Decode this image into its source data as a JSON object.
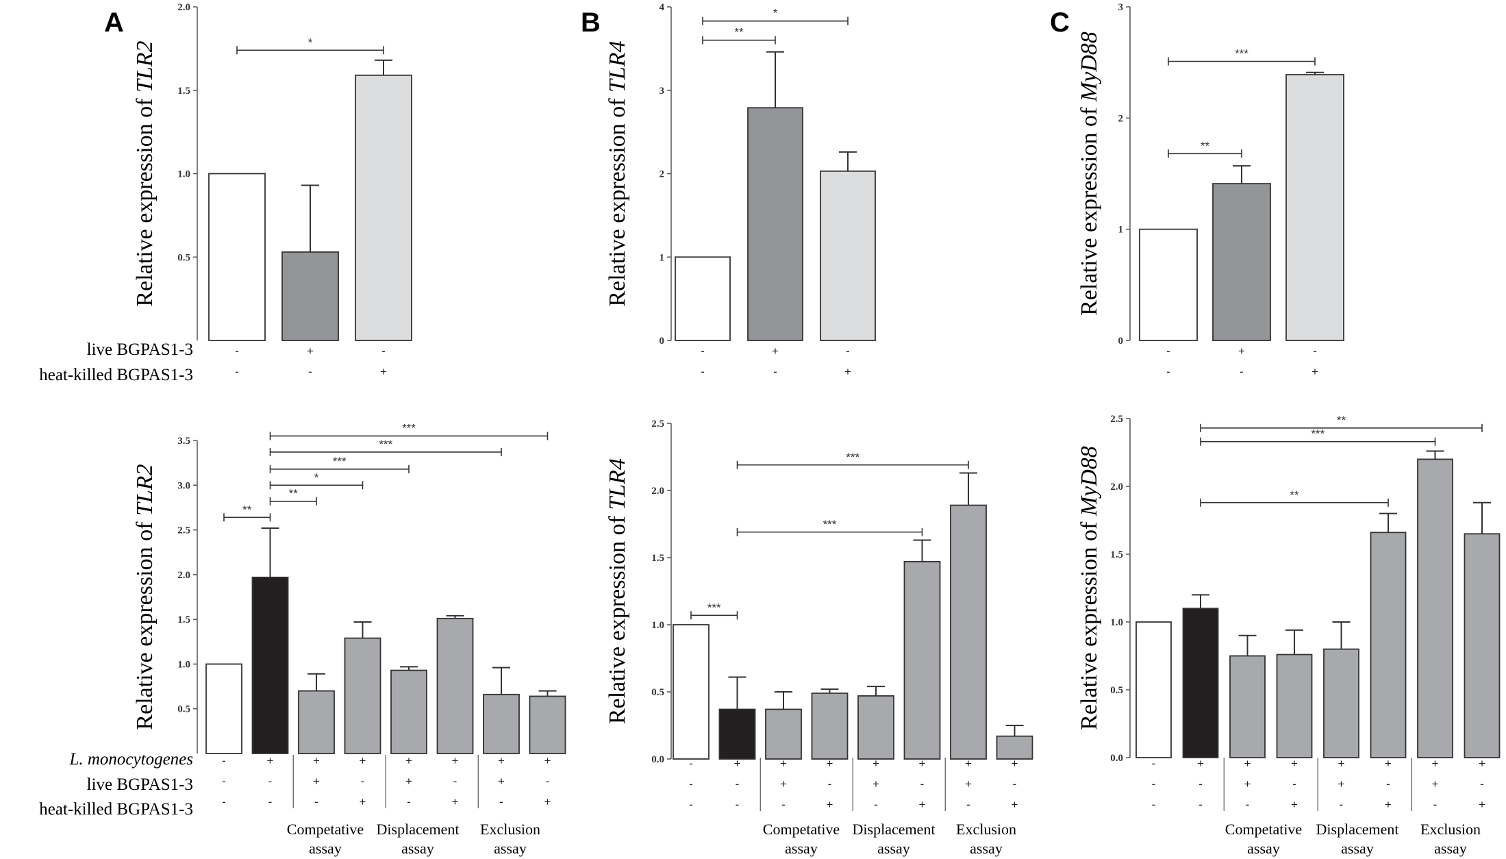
{
  "figure": {
    "row_labels_top": [
      "live BGPAS1-3",
      "heat-killed BGPAS1-3"
    ],
    "row_labels_bottom": [
      "L. monocytogenes",
      "live BGPAS1-3",
      "heat-killed BGPAS1-3"
    ],
    "assay_groups": [
      {
        "line1": "Competative",
        "line2": "assay"
      },
      {
        "line1": "Displacement",
        "line2": "assay"
      },
      {
        "line1": "Exclusion",
        "line2": "assay"
      }
    ]
  },
  "chart_data": [
    {
      "id": "A_top",
      "panel": "A",
      "type": "bar",
      "ylabel_prefix": "Relative expression of ",
      "ylabel_gene": "TLR2",
      "ylim": [
        0,
        2.0
      ],
      "ticks": [
        "0.5",
        "1.0",
        "1.5",
        "2.0"
      ],
      "values": [
        1.0,
        0.53,
        1.59
      ],
      "errors": [
        0,
        0.4,
        0.09
      ],
      "colors": [
        "#ffffff",
        "#939598",
        "#dcdddf"
      ],
      "signs": [
        [
          "-",
          "+",
          "-"
        ],
        [
          "-",
          "-",
          "+"
        ]
      ],
      "sig": [
        {
          "from": 1,
          "to": 3,
          "y": 1.74,
          "label": "*"
        }
      ]
    },
    {
      "id": "B_top",
      "panel": "B",
      "type": "bar",
      "ylabel_prefix": "Relative expression of ",
      "ylabel_gene": "TLR4",
      "ylim": [
        0,
        4
      ],
      "ticks": [
        "0",
        "1",
        "2",
        "3",
        "4"
      ],
      "values": [
        1.0,
        2.79,
        2.03
      ],
      "errors": [
        0,
        0.67,
        0.23
      ],
      "colors": [
        "#ffffff",
        "#939598",
        "#dcdddf"
      ],
      "signs": [
        [
          "-",
          "+",
          "-"
        ],
        [
          "-",
          "-",
          "+"
        ]
      ],
      "sig": [
        {
          "from": 1,
          "to": 2,
          "y": 3.6,
          "label": "**"
        },
        {
          "from": 1,
          "to": 3,
          "y": 3.83,
          "label": "*"
        }
      ]
    },
    {
      "id": "C_top",
      "panel": "C",
      "type": "bar",
      "ylabel_prefix": "Relative expression of ",
      "ylabel_gene": "MyD88",
      "ylim": [
        0,
        3
      ],
      "ticks": [
        "0",
        "1",
        "2",
        "3"
      ],
      "values": [
        1.0,
        1.41,
        2.39
      ],
      "errors": [
        0,
        0.16,
        0.02
      ],
      "colors": [
        "#ffffff",
        "#939598",
        "#dcdddf"
      ],
      "signs": [
        [
          "-",
          "+",
          "-"
        ],
        [
          "-",
          "-",
          "+"
        ]
      ],
      "sig": [
        {
          "from": 1,
          "to": 2,
          "y": 1.68,
          "label": "**"
        },
        {
          "from": 1,
          "to": 3,
          "y": 2.51,
          "label": "***"
        }
      ]
    },
    {
      "id": "A_bottom",
      "panel": "A",
      "type": "bar",
      "ylabel_prefix": "Relative expression of ",
      "ylabel_gene": "TLR2",
      "ylim": [
        0,
        3.5
      ],
      "ticks": [
        "0.5",
        "1.0",
        "1.5",
        "2.0",
        "2.5",
        "3.0",
        "3.5"
      ],
      "values": [
        1.0,
        1.97,
        0.7,
        1.29,
        0.93,
        1.51,
        0.66,
        0.64
      ],
      "errors": [
        0,
        0.55,
        0.19,
        0.18,
        0.04,
        0.03,
        0.3,
        0.06
      ],
      "colors": [
        "#ffffff",
        "#231f20",
        "#a7a9ac",
        "#a7a9ac",
        "#a7a9ac",
        "#a7a9ac",
        "#a7a9ac",
        "#a7a9ac"
      ],
      "signs": [
        [
          "-",
          "+",
          "+",
          "+",
          "+",
          "+",
          "+",
          "+"
        ],
        [
          "-",
          "-",
          "+",
          "-",
          "+",
          "-",
          "+",
          "-"
        ],
        [
          "-",
          "-",
          "-",
          "+",
          "-",
          "+",
          "-",
          "+"
        ]
      ],
      "sig": [
        {
          "from": 1,
          "to": 2,
          "y": 2.64,
          "label": "**"
        },
        {
          "from": 2,
          "to": 3,
          "y": 2.82,
          "label": "**"
        },
        {
          "from": 2,
          "to": 4,
          "y": 3.0,
          "label": "*"
        },
        {
          "from": 2,
          "to": 5,
          "y": 3.18,
          "label": "***"
        },
        {
          "from": 2,
          "to": 7,
          "y": 3.37,
          "label": "***"
        },
        {
          "from": 2,
          "to": 8,
          "y": 3.55,
          "label": "***"
        }
      ]
    },
    {
      "id": "B_bottom",
      "panel": "B",
      "type": "bar",
      "ylabel_prefix": "Relative expression of ",
      "ylabel_gene": "TLR4",
      "ylim": [
        0,
        2.5
      ],
      "ticks": [
        "0.0",
        "0.5",
        "1.0",
        "1.5",
        "2.0",
        "2.5"
      ],
      "values": [
        1.0,
        0.37,
        0.37,
        0.49,
        0.47,
        1.47,
        1.89,
        0.17
      ],
      "errors": [
        0,
        0.24,
        0.13,
        0.03,
        0.07,
        0.16,
        0.24,
        0.08
      ],
      "colors": [
        "#ffffff",
        "#231f20",
        "#a7a9ac",
        "#a7a9ac",
        "#a7a9ac",
        "#a7a9ac",
        "#a7a9ac",
        "#a7a9ac"
      ],
      "signs": [
        [
          "-",
          "+",
          "+",
          "+",
          "+",
          "+",
          "+",
          "+"
        ],
        [
          "-",
          "-",
          "+",
          "-",
          "+",
          "-",
          "+",
          "-"
        ],
        [
          "-",
          "-",
          "-",
          "+",
          "-",
          "+",
          "-",
          "+"
        ]
      ],
      "sig": [
        {
          "from": 1,
          "to": 2,
          "y": 1.07,
          "label": "***"
        },
        {
          "from": 2,
          "to": 6,
          "y": 1.69,
          "label": "***"
        },
        {
          "from": 2,
          "to": 7,
          "y": 2.19,
          "label": "***"
        }
      ]
    },
    {
      "id": "C_bottom",
      "panel": "C",
      "type": "bar",
      "ylabel_prefix": "Relative expression of ",
      "ylabel_gene": "MyD88",
      "ylim": [
        0,
        2.5
      ],
      "ticks": [
        "0.0",
        "0.5",
        "1.0",
        "1.5",
        "2.0",
        "2.5"
      ],
      "values": [
        1.0,
        1.1,
        0.75,
        0.76,
        0.8,
        1.66,
        2.2,
        1.65
      ],
      "errors": [
        0,
        0.1,
        0.15,
        0.18,
        0.2,
        0.14,
        0.06,
        0.23
      ],
      "colors": [
        "#ffffff",
        "#231f20",
        "#a7a9ac",
        "#a7a9ac",
        "#a7a9ac",
        "#a7a9ac",
        "#a7a9ac",
        "#a7a9ac"
      ],
      "signs": [
        [
          "-",
          "+",
          "+",
          "+",
          "+",
          "+",
          "+",
          "+"
        ],
        [
          "-",
          "-",
          "+",
          "-",
          "+",
          "-",
          "+",
          "-"
        ],
        [
          "-",
          "-",
          "-",
          "+",
          "-",
          "+",
          "-",
          "+"
        ]
      ],
      "sig": [
        {
          "from": 2,
          "to": 6,
          "y": 1.88,
          "label": "**"
        },
        {
          "from": 2,
          "to": 7,
          "y": 2.33,
          "label": "***"
        },
        {
          "from": 2,
          "to": 8,
          "y": 2.43,
          "label": "**"
        }
      ]
    }
  ]
}
